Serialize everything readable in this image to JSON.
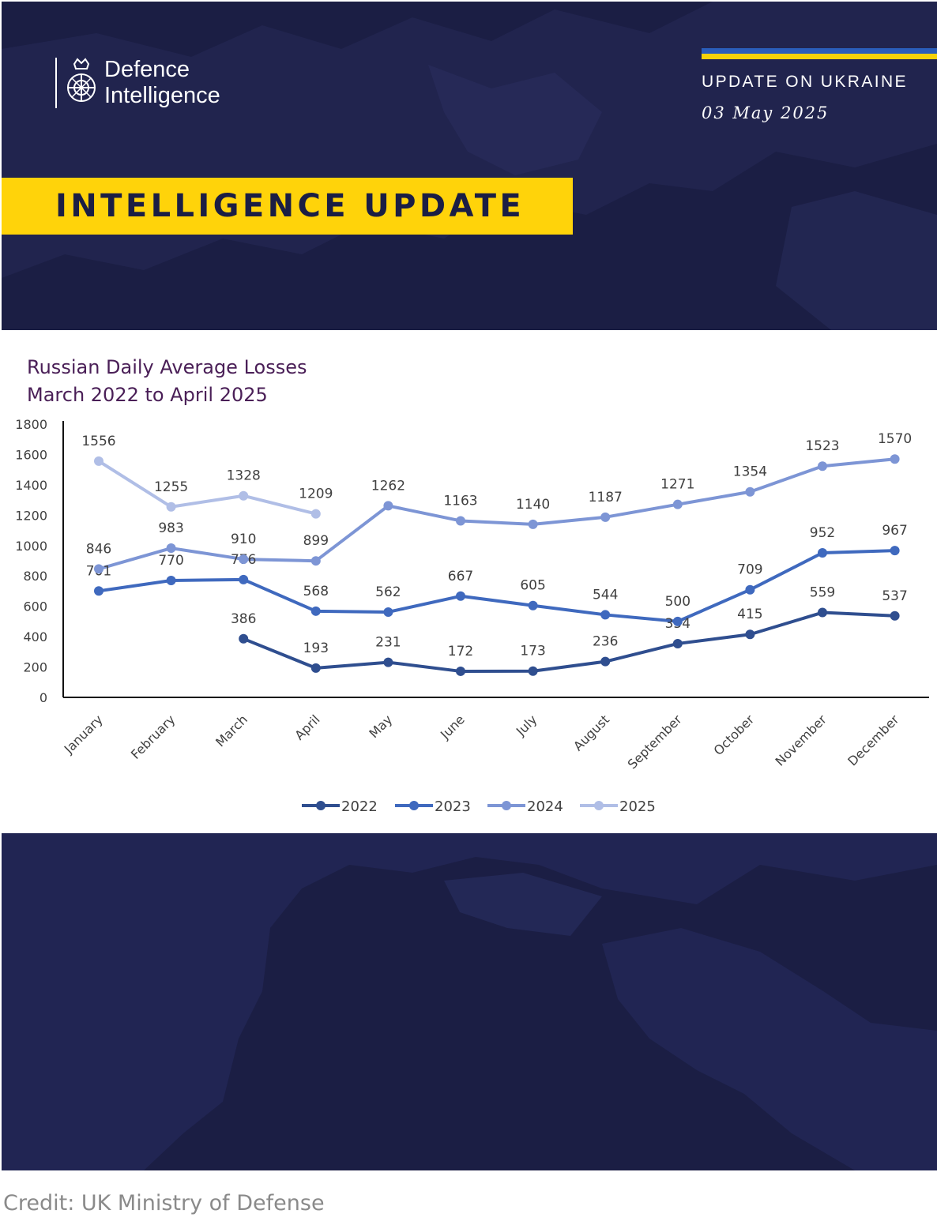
{
  "header": {
    "logo_line1": "Defence",
    "logo_line2": "Intelligence",
    "update_title": "UPDATE ON UKRAINE",
    "update_date": "03 May 2025",
    "banner": "INTELLIGENCE UPDATE"
  },
  "chart_title": {
    "line1": "Russian Daily Average Losses",
    "line2": "March 2022 to April 2025"
  },
  "chart_data": {
    "type": "line",
    "title": "Russian Daily Average Losses March 2022 to April 2025",
    "xlabel": "",
    "ylabel": "",
    "categories": [
      "January",
      "February",
      "March",
      "April",
      "May",
      "June",
      "July",
      "August",
      "September",
      "October",
      "November",
      "December"
    ],
    "ylim": [
      0,
      1800
    ],
    "yticks": [
      0,
      200,
      400,
      600,
      800,
      1000,
      1200,
      1400,
      1600,
      1800
    ],
    "grid": false,
    "legend_position": "bottom",
    "series": [
      {
        "name": "2022",
        "color": "#2f4e8f",
        "values": [
          null,
          null,
          386,
          193,
          231,
          172,
          173,
          236,
          354,
          415,
          559,
          537
        ]
      },
      {
        "name": "2023",
        "color": "#3f69be",
        "values": [
          701,
          770,
          776,
          568,
          562,
          667,
          605,
          544,
          500,
          709,
          952,
          967
        ]
      },
      {
        "name": "2024",
        "color": "#7d95d5",
        "values": [
          846,
          983,
          910,
          899,
          1262,
          1163,
          1140,
          1187,
          1271,
          1354,
          1523,
          1570
        ]
      },
      {
        "name": "2025",
        "color": "#b0bee6",
        "values": [
          1556,
          1255,
          1328,
          1209,
          null,
          null,
          null,
          null,
          null,
          null,
          null,
          null
        ]
      }
    ]
  },
  "credit": "Credit: UK Ministry of Defense"
}
